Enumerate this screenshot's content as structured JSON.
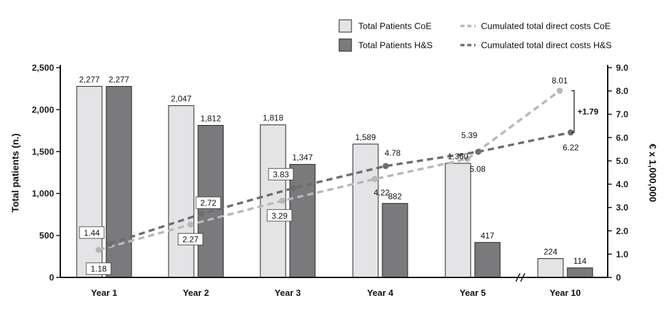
{
  "chart_data": {
    "type": "bar",
    "categories": [
      "Year 1",
      "Year 2",
      "Year 3",
      "Year 4",
      "Year 5",
      "Year 10"
    ],
    "series": [
      {
        "name": "Total Patients CoE",
        "kind": "bar",
        "axis": "left",
        "color": "#e4e4e6",
        "values": [
          2277,
          2047,
          1818,
          1589,
          1360,
          224
        ],
        "labels": [
          "2,277",
          "2,047",
          "1,818",
          "1,589",
          "1,360",
          "224"
        ]
      },
      {
        "name": "Total Patients H&S",
        "kind": "bar",
        "axis": "left",
        "color": "#7a7a7c",
        "values": [
          2277,
          1812,
          1347,
          882,
          417,
          114
        ],
        "labels": [
          "2,277",
          "1,812",
          "1,347",
          "882",
          "417",
          "114"
        ]
      },
      {
        "name": "Cumulated total direct costs CoE",
        "kind": "line",
        "axis": "right",
        "color": "#b8b8ba",
        "values": [
          1.18,
          2.27,
          3.29,
          4.22,
          5.08,
          8.01
        ],
        "labels": [
          "1.18",
          "2.27",
          "3.29",
          "4.22",
          "5.08",
          "8.01"
        ]
      },
      {
        "name": "Cumulated total direct costs H&S",
        "kind": "line",
        "axis": "right",
        "color": "#6e6e70",
        "values": [
          1.44,
          2.72,
          3.83,
          4.78,
          5.39,
          6.22
        ],
        "labels": [
          "1.44",
          "2.72",
          "3.83",
          "4.78",
          "5.39",
          "6.22"
        ]
      }
    ],
    "ylabel": "Total patients (n.)",
    "y2label": "€ x 1,000,000",
    "ylim": [
      0,
      2500
    ],
    "y2lim": [
      0,
      9
    ],
    "yticks": [
      "0",
      "500",
      "1,000",
      "1,500",
      "2,000",
      "2,500"
    ],
    "y2ticks": [
      "0",
      "1.0",
      "2.0",
      "3.0",
      "4.0",
      "5.0",
      "6.0",
      "7.0",
      "8.0",
      "9.0"
    ],
    "annotation": "+1.79",
    "axis_break": "between Year 5 and Year 10",
    "legend_position": "top-right",
    "grid": false
  }
}
